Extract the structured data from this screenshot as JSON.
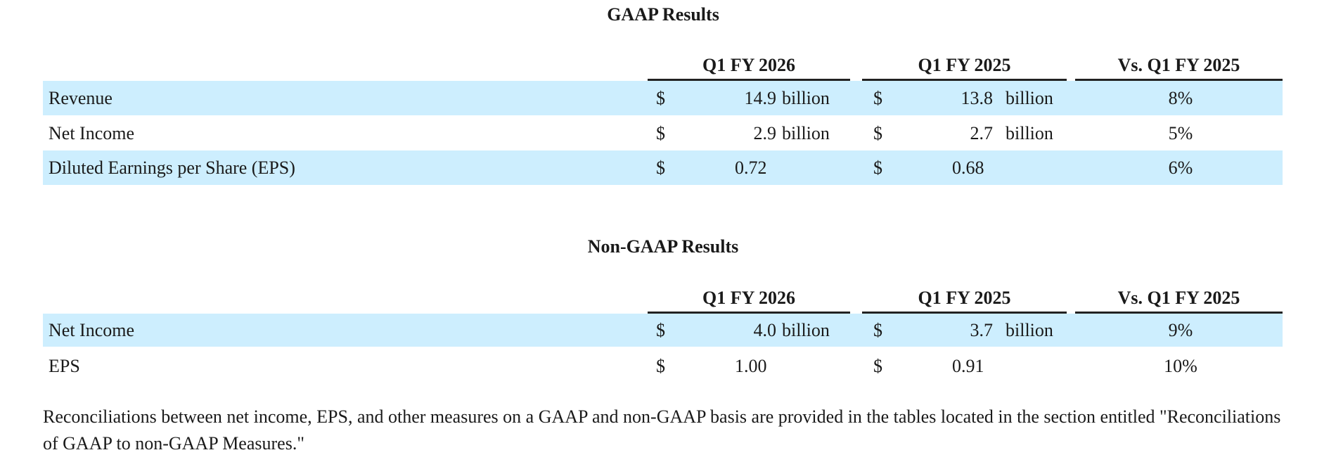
{
  "gaap": {
    "title": "GAAP Results",
    "headers": [
      "Q1 FY 2026",
      "Q1 FY 2025",
      "Vs. Q1 FY 2025"
    ],
    "rows": [
      {
        "label": "Revenue",
        "cur": "$",
        "v1": "14.9",
        "u1": "billion",
        "v2": "13.8",
        "u2": "billion",
        "change": "8%"
      },
      {
        "label": "Net Income",
        "cur": "$",
        "v1": "2.9",
        "u1": "billion",
        "v2": "2.7",
        "u2": "billion",
        "change": "5%"
      },
      {
        "label": "Diluted Earnings per Share (EPS)",
        "cur": "$",
        "v1": "0.72",
        "u1": "",
        "v2": "0.68",
        "u2": "",
        "change": "6%"
      }
    ]
  },
  "nongaap": {
    "title": "Non-GAAP Results",
    "headers": [
      "Q1 FY 2026",
      "Q1 FY 2025",
      "Vs. Q1 FY 2025"
    ],
    "rows": [
      {
        "label": "Net Income",
        "cur": "$",
        "v1": "4.0",
        "u1": "billion",
        "v2": "3.7",
        "u2": "billion",
        "change": "9%"
      },
      {
        "label": "EPS",
        "cur": "$",
        "v1": "1.00",
        "u1": "",
        "v2": "0.91",
        "u2": "",
        "change": "10%"
      }
    ]
  },
  "footnote": "Reconciliations between net income, EPS, and other measures on a GAAP and non-GAAP basis are provided in the tables located in the section entitled \"Reconciliations of GAAP to non-GAAP Measures.\"",
  "colors": {
    "band": "#cdeefe",
    "rule": "#222222"
  }
}
